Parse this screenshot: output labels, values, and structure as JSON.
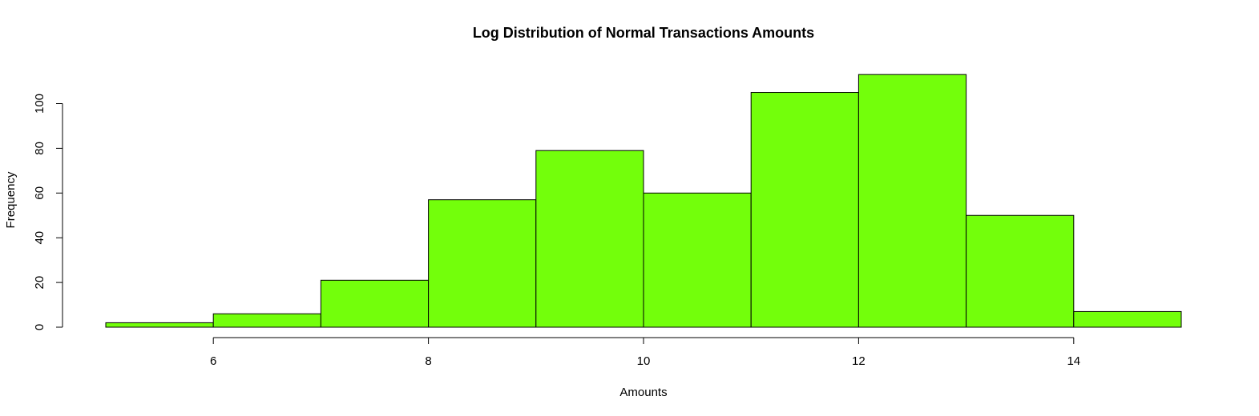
{
  "chart_data": {
    "type": "bar",
    "title": "Log Distribution of Normal Transactions Amounts",
    "xlabel": "Amounts",
    "ylabel": "Frequency",
    "bin_edges": [
      5,
      6,
      7,
      8,
      9,
      10,
      11,
      12,
      13,
      14,
      15
    ],
    "values": [
      2,
      6,
      21,
      57,
      79,
      60,
      105,
      113,
      50,
      7
    ],
    "x_ticks": [
      6,
      8,
      10,
      12,
      14
    ],
    "y_ticks": [
      0,
      20,
      40,
      60,
      80,
      100
    ],
    "xlim": [
      5,
      15
    ],
    "ylim": [
      0,
      113
    ],
    "bar_color": "#73ff0b",
    "bar_border_color": "#000000",
    "grid": false,
    "legend": "none"
  }
}
